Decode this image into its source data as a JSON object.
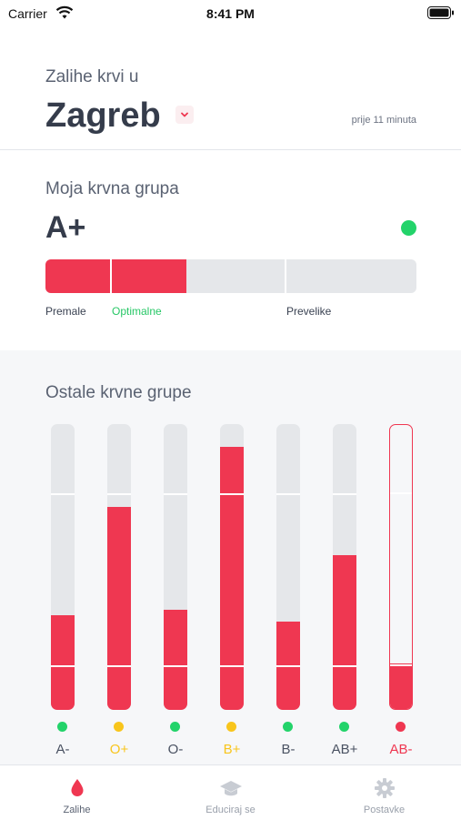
{
  "status_bar": {
    "carrier": "Carrier",
    "time": "8:41 PM"
  },
  "header": {
    "subtitle": "Zalihe krvi u",
    "city": "Zagreb",
    "updated": "prije 11 minuta"
  },
  "my_group": {
    "title": "Moja krvna grupa",
    "group": "A+",
    "status_color": "#23d36a",
    "level": 0.38,
    "labels": {
      "low": "Premale",
      "optimal": "Optimalne",
      "high": "Prevelike"
    }
  },
  "other_groups": {
    "title": "Ostale krvne grupe",
    "groups": [
      {
        "label": "A-",
        "level": 0.33,
        "status": "green"
      },
      {
        "label": "O+",
        "level": 0.71,
        "status": "yellow"
      },
      {
        "label": "O-",
        "level": 0.35,
        "status": "green"
      },
      {
        "label": "B+",
        "level": 0.92,
        "status": "yellow"
      },
      {
        "label": "B-",
        "level": 0.31,
        "status": "green"
      },
      {
        "label": "AB+",
        "level": 0.54,
        "status": "green"
      },
      {
        "label": "AB-",
        "level": 0.16,
        "status": "red"
      }
    ]
  },
  "colors": {
    "red": "#ef3751",
    "green": "#23d36a",
    "yellow": "#f8c51c",
    "track": "#e5e7ea"
  },
  "tabs": [
    {
      "label": "Zalihe",
      "icon": "blood-drop-icon",
      "active": true
    },
    {
      "label": "Educiraj se",
      "icon": "graduation-cap-icon",
      "active": false
    },
    {
      "label": "Postavke",
      "icon": "gear-icon",
      "active": false
    }
  ]
}
